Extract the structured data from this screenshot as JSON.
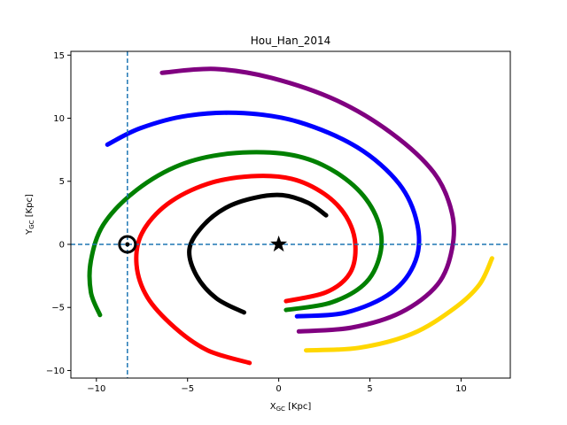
{
  "chart_data": {
    "type": "scatter",
    "title": "Hou_Han_2014",
    "xlabel_main": "X",
    "xlabel_sub": "GC",
    "xlabel_unit": " [Kpc]",
    "ylabel_main": "Y",
    "ylabel_sub": "GC",
    "ylabel_unit": " [Kpc]",
    "xlim": [
      -11.4,
      12.7
    ],
    "ylim": [
      -10.6,
      15.3
    ],
    "xticks": [
      -10,
      -5,
      0,
      5,
      10
    ],
    "yticks": [
      -10,
      -5,
      0,
      5,
      10,
      15
    ],
    "grid": false,
    "reference_lines": {
      "x": -8.3,
      "y": 0,
      "color": "#1f77b4",
      "style": "dashed"
    },
    "markers": [
      {
        "name": "sun",
        "symbol": "circled-dot",
        "x": -8.3,
        "y": 0
      },
      {
        "name": "galactic-center",
        "symbol": "star",
        "x": 0,
        "y": 0
      }
    ],
    "series": [
      {
        "color": "#000000",
        "pitch_deg": 12,
        "r0": 3.0,
        "theta_start_deg": -160,
        "theta_end_deg": 200,
        "cx": 0.0,
        "cy": -1.0,
        "points": [
          [
            2.6,
            2.3
          ],
          [
            1.6,
            3.3
          ],
          [
            0.2,
            3.9
          ],
          [
            -1.3,
            3.7
          ],
          [
            -2.9,
            2.9
          ],
          [
            -4.2,
            1.4
          ],
          [
            -4.9,
            -0.4
          ],
          [
            -4.5,
            -2.5
          ],
          [
            -3.4,
            -4.3
          ],
          [
            -1.9,
            -5.4
          ]
        ]
      },
      {
        "color": "#ff0000",
        "points": [
          [
            0.4,
            -4.5
          ],
          [
            2.6,
            -3.8
          ],
          [
            3.9,
            -2.3
          ],
          [
            4.2,
            0.0
          ],
          [
            3.7,
            2.2
          ],
          [
            2.5,
            4.0
          ],
          [
            0.7,
            5.2
          ],
          [
            -1.5,
            5.4
          ],
          [
            -3.9,
            4.8
          ],
          [
            -6.1,
            3.2
          ],
          [
            -7.5,
            0.9
          ],
          [
            -7.8,
            -1.6
          ],
          [
            -7.2,
            -4.2
          ],
          [
            -5.7,
            -6.6
          ],
          [
            -3.9,
            -8.4
          ],
          [
            -1.6,
            -9.4
          ]
        ]
      },
      {
        "color": "#008000",
        "points": [
          [
            0.4,
            -5.2
          ],
          [
            2.9,
            -4.6
          ],
          [
            4.8,
            -3.0
          ],
          [
            5.6,
            -0.5
          ],
          [
            5.4,
            2.0
          ],
          [
            4.3,
            4.4
          ],
          [
            2.4,
            6.3
          ],
          [
            0.2,
            7.2
          ],
          [
            -2.7,
            7.2
          ],
          [
            -5.4,
            6.3
          ],
          [
            -7.8,
            4.3
          ],
          [
            -9.6,
            1.6
          ],
          [
            -10.3,
            -1.3
          ],
          [
            -10.3,
            -3.8
          ],
          [
            -9.8,
            -5.6
          ]
        ]
      },
      {
        "color": "#0000ff",
        "points": [
          [
            1.0,
            -5.7
          ],
          [
            3.7,
            -5.4
          ],
          [
            6.2,
            -3.8
          ],
          [
            7.5,
            -1.3
          ],
          [
            7.6,
            1.6
          ],
          [
            6.6,
            4.8
          ],
          [
            4.3,
            7.7
          ],
          [
            1.1,
            9.7
          ],
          [
            -1.9,
            10.4
          ],
          [
            -5.0,
            10.2
          ],
          [
            -7.6,
            9.2
          ],
          [
            -9.4,
            7.9
          ]
        ]
      },
      {
        "color": "#800080",
        "points": [
          [
            1.1,
            -6.9
          ],
          [
            4.0,
            -6.6
          ],
          [
            6.7,
            -5.4
          ],
          [
            8.7,
            -3.2
          ],
          [
            9.5,
            -0.4
          ],
          [
            9.5,
            2.5
          ],
          [
            8.5,
            5.7
          ],
          [
            6.2,
            8.8
          ],
          [
            3.2,
            11.4
          ],
          [
            -0.4,
            13.2
          ],
          [
            -3.5,
            13.9
          ],
          [
            -6.4,
            13.6
          ]
        ]
      },
      {
        "color": "#ffd700",
        "points": [
          [
            1.5,
            -8.4
          ],
          [
            4.4,
            -8.2
          ],
          [
            7.3,
            -7.1
          ],
          [
            9.6,
            -5.1
          ],
          [
            11.0,
            -3.2
          ],
          [
            11.7,
            -1.1
          ]
        ]
      }
    ]
  }
}
